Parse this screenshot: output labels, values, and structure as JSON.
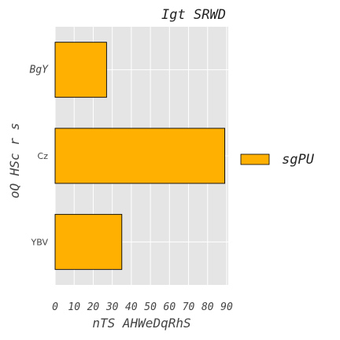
{
  "chart_data": {
    "type": "bar",
    "orientation": "horizontal",
    "title": "Igt SRWD",
    "xlabel": "nTS AHWeDqRhS",
    "ylabel": "oQ HSc r s",
    "categories": [
      "BgY",
      "Cz",
      "YBV"
    ],
    "series": [
      {
        "name": "sgPU",
        "values": [
          27,
          89,
          35
        ],
        "color": "#ffb000"
      }
    ],
    "xlim": [
      0,
      90
    ],
    "xticks": [
      "0",
      "10",
      "20",
      "30",
      "40",
      "50",
      "60",
      "70",
      "80",
      "90"
    ],
    "grid": true,
    "legend_position": "right",
    "background_color": "#e5e5e5",
    "bar_edge_color": "#000000"
  }
}
